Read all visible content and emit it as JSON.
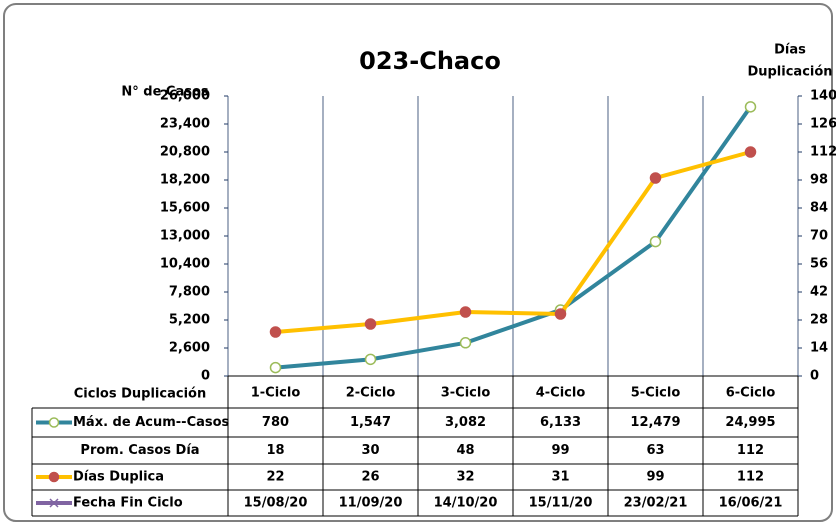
{
  "chart_data": {
    "type": "line",
    "title": "023-Chaco",
    "ylabel": "N° de Casos",
    "y2label": [
      "Días",
      "Duplicación"
    ],
    "table_header": "Ciclos Duplicación",
    "categories": [
      "1-Ciclo",
      "2-Ciclo",
      "3-Ciclo",
      "4-Ciclo",
      "5-Ciclo",
      "6-Ciclo"
    ],
    "ylim": [
      0,
      26000
    ],
    "yticks": [
      0,
      {
        "value": 2600,
        "label": "2,600"
      },
      {
        "value": 5200,
        "label": "5,200"
      },
      {
        "value": 7800,
        "label": "7,800"
      },
      {
        "value": 10400,
        "label": "10,400"
      },
      {
        "value": 13000,
        "label": "13,000"
      },
      {
        "value": 15600,
        "label": "15,600"
      },
      {
        "value": 18200,
        "label": "18,200"
      },
      {
        "value": 20800,
        "label": "20,800"
      },
      {
        "value": 23400,
        "label": "23,400"
      },
      {
        "value": 26000,
        "label": "26,000"
      }
    ],
    "y2lim": [
      0,
      140
    ],
    "y2ticks": [
      0,
      14,
      28,
      42,
      56,
      70,
      84,
      98,
      112,
      126,
      140
    ],
    "series": [
      {
        "name": "Máx. de Acum--Casos",
        "color": "#31859c",
        "marker_color": "#9bbb59",
        "values": [
          780,
          1547,
          3082,
          6133,
          12479,
          24995
        ],
        "value_labels": [
          "780",
          "1,547",
          "3,082",
          "6,133",
          "12,479",
          "24,995"
        ]
      },
      {
        "name": "Prom. Casos Día",
        "values": [
          18,
          30,
          48,
          99,
          63,
          112
        ]
      },
      {
        "name": "Días Duplica",
        "color": "#ffc000",
        "marker_color": "#c0504d",
        "axis": "y2",
        "values": [
          22,
          26,
          32,
          31,
          99,
          112
        ]
      },
      {
        "name": "Fecha Fin Ciclo",
        "color": "#8064a2",
        "labels": [
          "15/08/20",
          "11/09/20",
          "14/10/20",
          "15/11/20",
          "23/02/21",
          "16/06/21"
        ]
      }
    ]
  }
}
